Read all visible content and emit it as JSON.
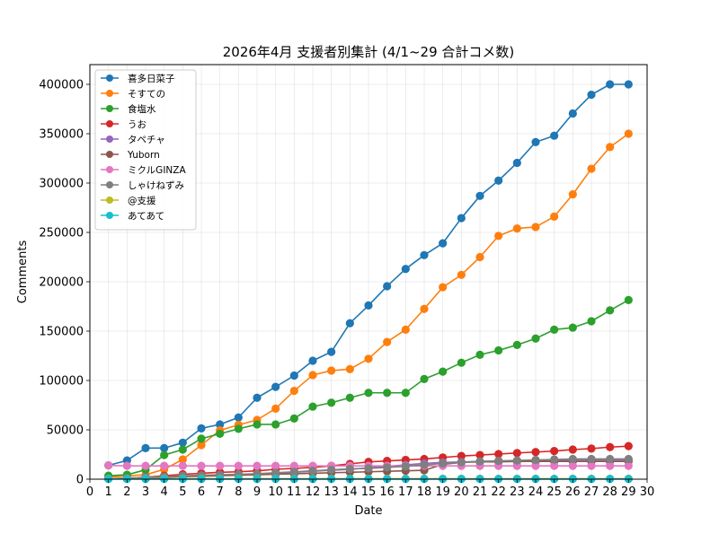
{
  "chart_data": {
    "type": "line",
    "title": "2026年4月 支援者別集計 (4/1~29 合計コメ数)",
    "xlabel": "Date",
    "ylabel": "Comments",
    "xlim": [
      0,
      30
    ],
    "ylim": [
      0,
      420000
    ],
    "xticks": [
      "0",
      "1",
      "2",
      "3",
      "4",
      "5",
      "6",
      "7",
      "8",
      "9",
      "10",
      "11",
      "12",
      "13",
      "14",
      "15",
      "16",
      "17",
      "18",
      "19",
      "20",
      "21",
      "22",
      "23",
      "24",
      "25",
      "26",
      "27",
      "28",
      "29",
      "30"
    ],
    "yticks": [
      "0",
      "50000",
      "100000",
      "150000",
      "200000",
      "250000",
      "300000",
      "350000",
      "400000"
    ],
    "grid": true,
    "legend_position": "top-left",
    "x": [
      1,
      2,
      3,
      4,
      5,
      6,
      7,
      8,
      9,
      10,
      11,
      12,
      13,
      14,
      15,
      16,
      17,
      18,
      19,
      20,
      21,
      22,
      23,
      24,
      25,
      26,
      27,
      28,
      29
    ],
    "series": [
      {
        "name": "喜多日菜子",
        "color": "#1f77b4",
        "values": [
          14000,
          19000,
          31500,
          31500,
          37000,
          51500,
          55500,
          62500,
          82500,
          93500,
          105000,
          120000,
          129000,
          158000,
          176000,
          195500,
          213000,
          227000,
          239000,
          264500,
          287000,
          302500,
          320500,
          341500,
          348000,
          370500,
          389500,
          400000,
          400000
        ]
      },
      {
        "name": "そすての",
        "color": "#ff7f0e",
        "values": [
          2000,
          3500,
          4500,
          10000,
          20000,
          34500,
          49500,
          55000,
          60000,
          71500,
          89500,
          105500,
          110000,
          111500,
          122000,
          139000,
          151500,
          172500,
          194500,
          207000,
          225000,
          246500,
          254000,
          255500,
          266000,
          288500,
          314500,
          336500,
          350000
        ]
      },
      {
        "name": "食塩水",
        "color": "#2ca02c",
        "values": [
          3500,
          4500,
          9500,
          24500,
          30000,
          41000,
          46000,
          51000,
          55500,
          55500,
          61500,
          73500,
          77500,
          82500,
          87500,
          87500,
          87500,
          101500,
          109000,
          118000,
          126000,
          130500,
          136000,
          142500,
          151500,
          153500,
          160000,
          171000,
          181500
        ]
      },
      {
        "name": "うお",
        "color": "#d62728",
        "values": [
          500,
          1000,
          2000,
          3500,
          5000,
          6000,
          7000,
          7500,
          8500,
          10000,
          11000,
          12000,
          13500,
          15500,
          17500,
          18500,
          19500,
          20500,
          22000,
          23500,
          24500,
          25500,
          26500,
          27500,
          28500,
          30000,
          31000,
          32500,
          33500
        ]
      },
      {
        "name": "タペチャ",
        "color": "#9467bd",
        "values": [
          500,
          1000,
          2000,
          2500,
          3000,
          3500,
          4000,
          4500,
          5000,
          6000,
          7000,
          8000,
          9000,
          10000,
          11500,
          13000,
          14500,
          16000,
          17000,
          17500,
          18000,
          18500,
          18500,
          19000,
          19000,
          19500,
          19500,
          19500,
          19500
        ]
      },
      {
        "name": "Yuborn",
        "color": "#8c564b",
        "values": [
          500,
          1000,
          1500,
          2000,
          2500,
          3000,
          3500,
          4000,
          4500,
          5000,
          5500,
          6000,
          6500,
          7000,
          7500,
          8000,
          8500,
          9000,
          15000,
          17000,
          17500,
          17500,
          18000,
          18000,
          18000,
          18000,
          18000,
          18000,
          18000
        ]
      },
      {
        "name": "ミクルGINZA",
        "color": "#e377c2",
        "values": [
          14000,
          13500,
          13500,
          13500,
          13500,
          13500,
          13500,
          13500,
          13500,
          13500,
          13500,
          13500,
          13500,
          13500,
          13500,
          13500,
          13500,
          13500,
          13500,
          13500,
          13500,
          13500,
          13500,
          13500,
          13500,
          13500,
          13500,
          13500,
          13500
        ]
      },
      {
        "name": "しゃけねずみ",
        "color": "#7f7f7f",
        "values": [
          500,
          1000,
          2000,
          2500,
          3500,
          4000,
          4500,
          5000,
          5500,
          6500,
          7500,
          8500,
          9500,
          10500,
          11000,
          12000,
          13000,
          14500,
          16000,
          17000,
          18000,
          18500,
          19000,
          19500,
          20000,
          20500,
          20500,
          20500,
          20500
        ]
      },
      {
        "name": "@支援",
        "color": "#bcbd22",
        "values": [
          500,
          500,
          500,
          500,
          500,
          500,
          500,
          500,
          500,
          500,
          500,
          500,
          500,
          500,
          500,
          500,
          500,
          500,
          500,
          500,
          500,
          500,
          500,
          500,
          500,
          500,
          500,
          500,
          500
        ]
      },
      {
        "name": "あてあて",
        "color": "#17becf",
        "values": [
          200,
          200,
          200,
          200,
          200,
          200,
          200,
          200,
          200,
          200,
          200,
          200,
          200,
          200,
          200,
          200,
          200,
          200,
          200,
          200,
          200,
          200,
          200,
          200,
          200,
          200,
          200,
          200,
          200
        ]
      }
    ]
  }
}
